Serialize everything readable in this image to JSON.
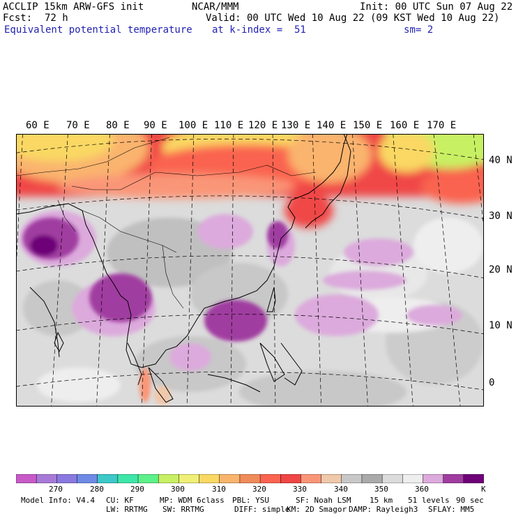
{
  "header": {
    "model": "ACCLIP 15km ARW-GFS init",
    "org": "NCAR/MMM",
    "init": "Init: 00 UTC Sun 07 Aug 22",
    "fcst_label": "Fcst:",
    "fcst_value": "72 h",
    "valid": "Valid: 00 UTC Wed 10 Aug 22 (09 KST Wed 10 Aug 22)",
    "field": "Equivalent potential temperature",
    "level": "at k-index =  51",
    "smooth": "sm= 2"
  },
  "map": {
    "lon_labels": [
      "60 E",
      "70 E",
      "80 E",
      "90 E",
      "100 E",
      "110 E",
      "120 E",
      "130 E",
      "140 E",
      "150 E",
      "160 E",
      "170 E"
    ],
    "lat_labels": [
      "40 N",
      "30 N",
      "20 N",
      "10 N",
      "0"
    ],
    "colors": {
      "frame": "#000000",
      "grid": "#000000",
      "coast": "#000000"
    }
  },
  "colorbar": {
    "colors": [
      "#c85ac8",
      "#a87ad8",
      "#8a7ae0",
      "#6e8ae6",
      "#3ec8c8",
      "#3ee6a8",
      "#5ef08a",
      "#c8f064",
      "#f0f078",
      "#fad864",
      "#fab46e",
      "#f08c5a",
      "#fa6450",
      "#f04646",
      "#fa9678",
      "#f0c8aa",
      "#c8c8c8",
      "#aaaaaa",
      "#dcdcdc",
      "#eeeeee",
      "#dcaadc",
      "#a03ca0",
      "#6e0078"
    ],
    "labels": [
      "270",
      "280",
      "290",
      "300",
      "310",
      "320",
      "330",
      "340",
      "350",
      "360"
    ],
    "unit": "K"
  },
  "footer": {
    "line1": [
      "Model Info: V4.4",
      "CU: KF",
      "MP: WDM 6class",
      "PBL: YSU",
      "SF: Noah LSM",
      "15 km",
      "51 levels",
      "90 sec"
    ],
    "line2": [
      "LW: RRTMG",
      "SW: RRTMG",
      "DIFF: simple",
      "KM: 2D Smagor",
      "DAMP: Rayleigh3",
      "SFLAY: MM5"
    ]
  }
}
